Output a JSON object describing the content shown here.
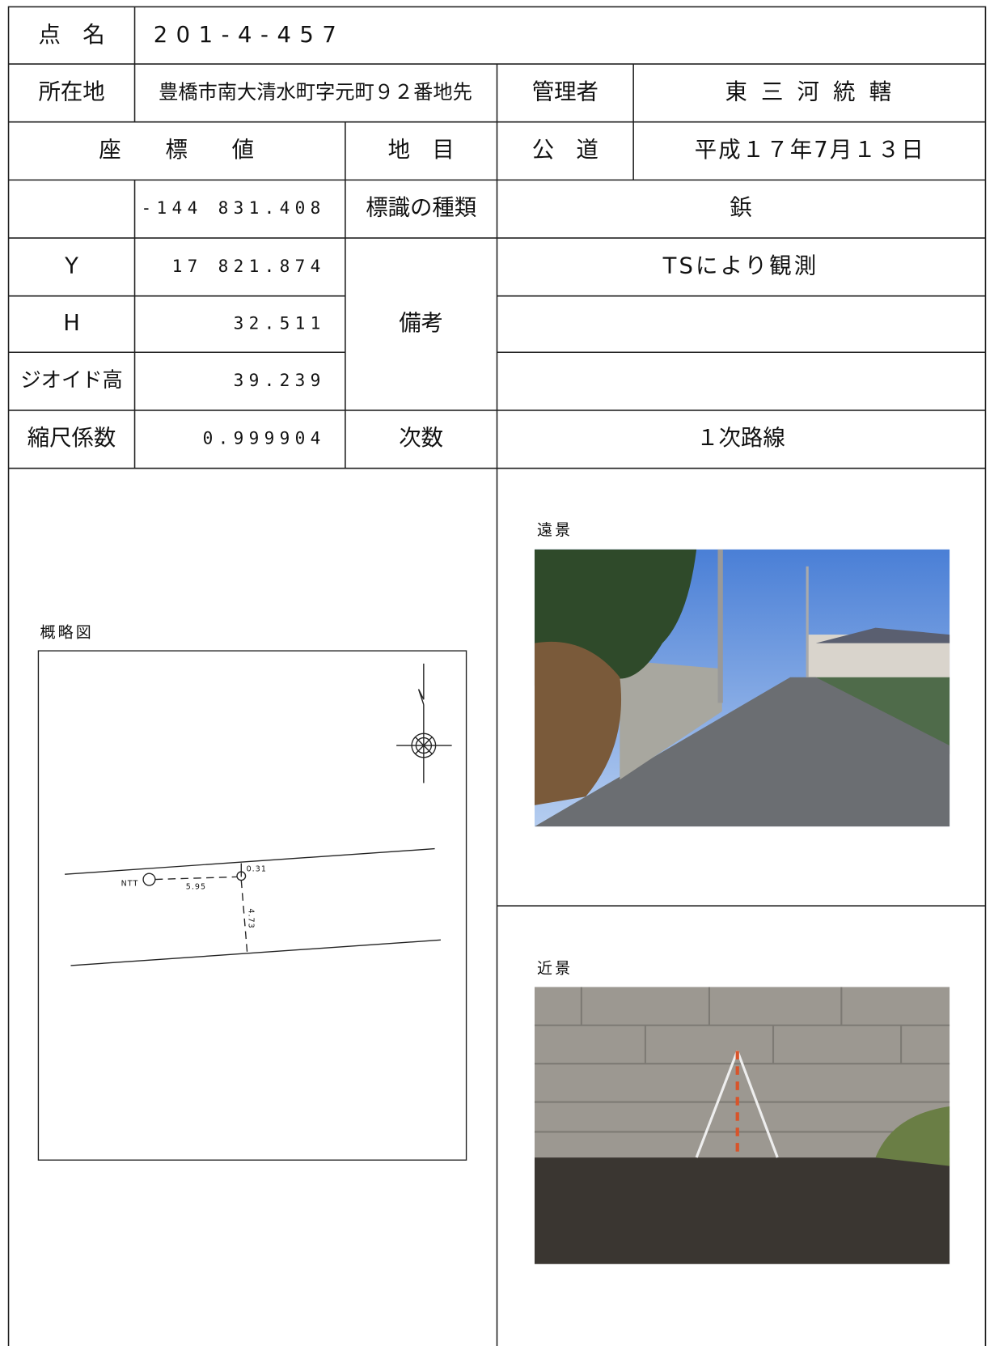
{
  "table": {
    "rows": [
      [
        "点　名",
        "201-4-457"
      ],
      [
        "所在地",
        "豊橋市南大清水町字元町９２番地先",
        "管理者",
        "東 三 河 統 轄"
      ],
      [
        "座　　標　　値",
        "地　目",
        "公　道",
        "平成１７年7月１３日"
      ],
      [
        "-144 831.408",
        "標識の種類",
        "鋲"
      ],
      [
        "Y",
        "17 821.874",
        "備考",
        "TSにより観測"
      ],
      [
        "H",
        "32.511"
      ],
      [
        "ジオイド高",
        "39.239"
      ],
      [
        "縮尺係数",
        "0.999904",
        "次数",
        "１次路線"
      ]
    ]
  },
  "sketch": {
    "title": "概略図",
    "labels": [
      "NTT",
      "5.95",
      "0.31",
      "4.73"
    ]
  },
  "photos": {
    "far": "遠景",
    "near": "近景"
  }
}
